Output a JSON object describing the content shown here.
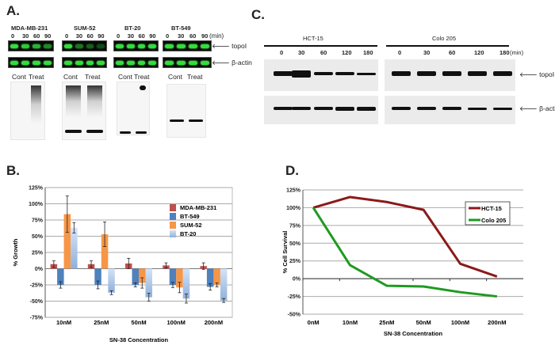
{
  "panels": {
    "a": {
      "label": "A.",
      "cell_lines": [
        "MDA-MB-231",
        "SUM-52",
        "BT-20",
        "BT-549"
      ],
      "times": [
        "0",
        "30",
        "60",
        "90"
      ],
      "time_unit": "(min)",
      "topo_label": "topoI",
      "actin_label": "β-actin",
      "cont_label": "Cont",
      "treat_label": "Treat"
    },
    "b": {
      "label": "B."
    },
    "c": {
      "label": "C.",
      "cell_lines": [
        "HCT-15",
        "Colo 205"
      ],
      "times": [
        "0",
        "30",
        "60",
        "120",
        "180"
      ],
      "time_unit": "(min)",
      "topo_label": "topoI",
      "actin_label": "β-actin"
    },
    "d": {
      "label": "D."
    }
  },
  "chart_data": [
    {
      "id": "B",
      "type": "bar",
      "title": "",
      "xlabel": "SN-38 Concentration",
      "ylabel": "% Growth",
      "categories": [
        "10nM",
        "25nM",
        "50nM",
        "100nM",
        "200nM"
      ],
      "ylim": [
        -75,
        125
      ],
      "yticks": [
        -75,
        -50,
        -25,
        0,
        25,
        50,
        75,
        100,
        125
      ],
      "ytick_labels": [
        "-75%",
        "-50%",
        "-25%",
        "0%",
        "25%",
        "50%",
        "75%",
        "100%",
        "125%"
      ],
      "grid": true,
      "legend": "top-right",
      "series": [
        {
          "name": "MDA-MB-231",
          "color": "#c0504d",
          "values": [
            7,
            7,
            8,
            5,
            4
          ],
          "errors": [
            5,
            5,
            8,
            4,
            5
          ]
        },
        {
          "name": "BT-549",
          "color": "#4f81bd",
          "values": [
            -25,
            -25,
            -25,
            -25,
            -28
          ],
          "errors": [
            5,
            6,
            3,
            4,
            5
          ]
        },
        {
          "name": "SUM-52",
          "color": "#f79646",
          "values": [
            84,
            53,
            -22,
            -29,
            -25
          ],
          "errors": [
            28,
            19,
            8,
            8,
            3
          ]
        },
        {
          "name": "BT-20",
          "color": "#b9cfee",
          "values": [
            63,
            -37,
            -44,
            -46,
            -49
          ],
          "errors": [
            8,
            3,
            6,
            7,
            3
          ]
        }
      ]
    },
    {
      "id": "D",
      "type": "line",
      "title": "",
      "xlabel": "SN-38 Concentration",
      "ylabel": "% Cell Survival",
      "categories": [
        "0nM",
        "10nM",
        "25nM",
        "50nM",
        "100nM",
        "200nM"
      ],
      "ylim": [
        -50,
        125
      ],
      "yticks": [
        -50,
        -25,
        0,
        25,
        50,
        75,
        100,
        125
      ],
      "ytick_labels": [
        "-50%",
        "-25%",
        "0%",
        "25%",
        "50%",
        "75%",
        "100%",
        "125%"
      ],
      "grid": true,
      "legend": "top-right",
      "series": [
        {
          "name": "HCT-15",
          "color": "#8b1a1a",
          "values": [
            100,
            115,
            108,
            97,
            21,
            3
          ]
        },
        {
          "name": "Colo 205",
          "color": "#1f9a1f",
          "values": [
            100,
            19,
            -10,
            -11,
            -19,
            -25
          ]
        }
      ]
    }
  ]
}
